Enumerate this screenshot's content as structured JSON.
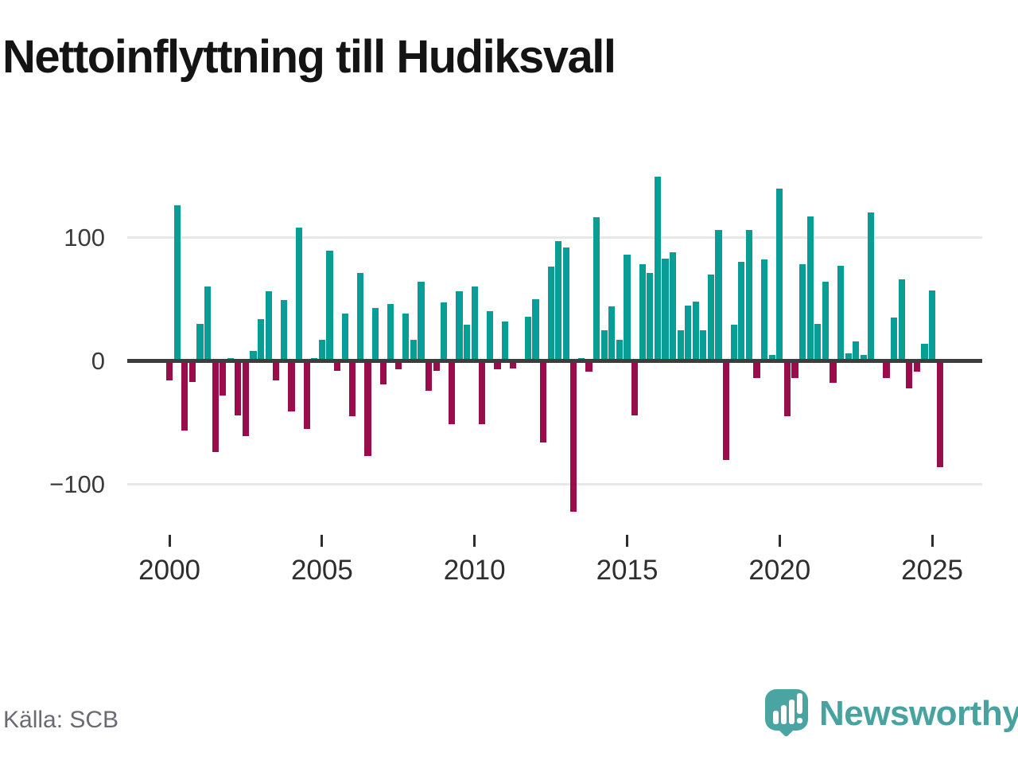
{
  "title": "Nettoinflyttning till Hudiksvall",
  "source": "Källa: SCB",
  "brand": {
    "name": "Newsworthy",
    "icon": "speech-bubble-bar-chart-icon"
  },
  "colors": {
    "positive": "#089e96",
    "negative": "#9b0c4a",
    "grid": "#e8e8e8",
    "zero_line": "#3d3d3d",
    "axis_text": "#3a3a3a",
    "title_text": "#141414",
    "source_text": "#6a6a72",
    "brand_teal": "#48a3a0"
  },
  "chart_data": {
    "type": "bar",
    "title": "Nettoinflyttning till Hudiksvall",
    "frequency": "quarterly",
    "period_start": "2000-Q1",
    "period_end": "2025-Q2",
    "xlabel": "",
    "ylabel": "",
    "ylim": [
      -130,
      155
    ],
    "grid": "horizontal gridlines at 100 and -100, dark zero baseline",
    "legend": "none",
    "y_ticks": [
      100,
      0,
      -100
    ],
    "y_tick_labels": [
      "100",
      "0",
      "−100"
    ],
    "x_tick_labels": [
      "2000",
      "2005",
      "2010",
      "2015",
      "2020",
      "2025"
    ],
    "x_tick_bar_indices": [
      0,
      20,
      40,
      60,
      80,
      100
    ],
    "values": [
      -16,
      126,
      -56,
      -17,
      30,
      60,
      -74,
      -28,
      2,
      -44,
      -61,
      8,
      34,
      56,
      -16,
      49,
      -41,
      108,
      -55,
      2,
      17,
      89,
      -8,
      38,
      -45,
      71,
      -77,
      43,
      -19,
      46,
      -7,
      38,
      17,
      64,
      -24,
      -8,
      47,
      -51,
      56,
      29,
      60,
      -51,
      40,
      -7,
      32,
      -6,
      0,
      36,
      50,
      -66,
      76,
      97,
      92,
      -122,
      2,
      -9,
      116,
      25,
      44,
      17,
      86,
      -44,
      78,
      71,
      149,
      83,
      88,
      25,
      45,
      48,
      25,
      70,
      106,
      -80,
      29,
      80,
      106,
      -14,
      82,
      5,
      139,
      -45,
      -14,
      78,
      117,
      30,
      64,
      -18,
      77,
      6,
      16,
      5,
      120,
      0,
      -14,
      35,
      66,
      -22,
      -9,
      14,
      57,
      -86
    ]
  }
}
